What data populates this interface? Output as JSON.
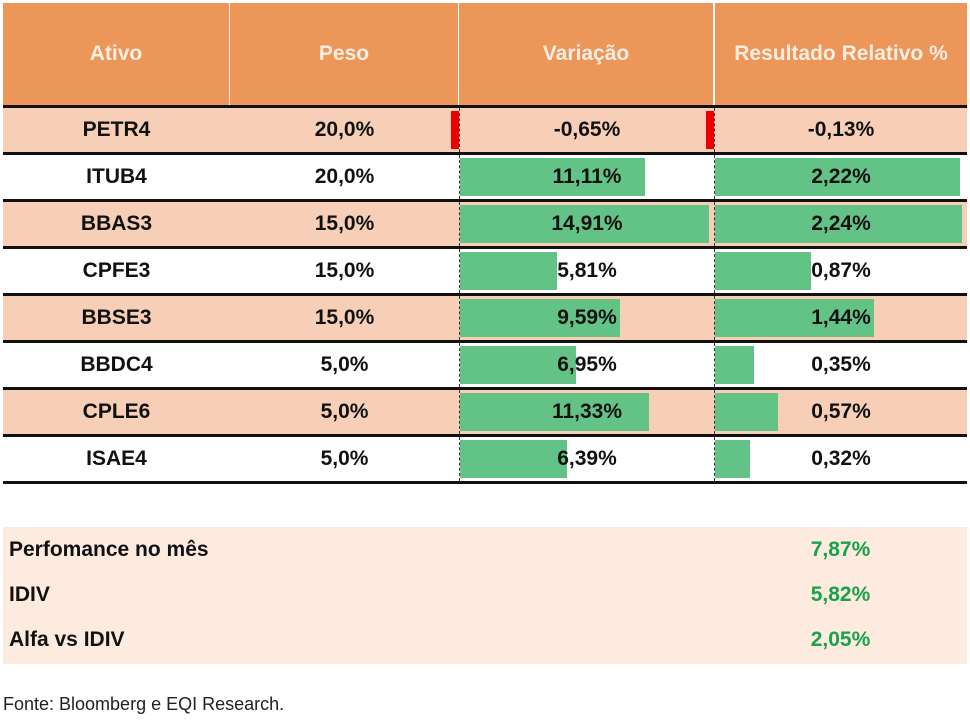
{
  "header": {
    "ativo": "Ativo",
    "peso": "Peso",
    "variacao": "Variação",
    "resultado": "Resultado Relativo %"
  },
  "max_variacao": 14.91,
  "max_resultado": 2.24,
  "rows": [
    {
      "ativo": "PETR4",
      "peso": "20,0%",
      "variacao": "-0,65%",
      "variacao_value": -0.65,
      "resultado": "-0,13%",
      "resultado_value": -0.13
    },
    {
      "ativo": "ITUB4",
      "peso": "20,0%",
      "variacao": "11,11%",
      "variacao_value": 11.11,
      "resultado": "2,22%",
      "resultado_value": 2.22
    },
    {
      "ativo": "BBAS3",
      "peso": "15,0%",
      "variacao": "14,91%",
      "variacao_value": 14.91,
      "resultado": "2,24%",
      "resultado_value": 2.24
    },
    {
      "ativo": "CPFE3",
      "peso": "15,0%",
      "variacao": "5,81%",
      "variacao_value": 5.81,
      "resultado": "0,87%",
      "resultado_value": 0.87
    },
    {
      "ativo": "BBSE3",
      "peso": "15,0%",
      "variacao": "9,59%",
      "variacao_value": 9.59,
      "resultado": "1,44%",
      "resultado_value": 1.44
    },
    {
      "ativo": "BBDC4",
      "peso": "5,0%",
      "variacao": "6,95%",
      "variacao_value": 6.95,
      "resultado": "0,35%",
      "resultado_value": 0.35
    },
    {
      "ativo": "CPLE6",
      "peso": "5,0%",
      "variacao": "11,33%",
      "variacao_value": 11.33,
      "resultado": "0,57%",
      "resultado_value": 0.57
    },
    {
      "ativo": "ISAE4",
      "peso": "5,0%",
      "variacao": "6,39%",
      "variacao_value": 6.39,
      "resultado": "0,32%",
      "resultado_value": 0.32
    }
  ],
  "summary": [
    {
      "label": "Perfomance no mês",
      "value": "7,87%"
    },
    {
      "label": "IDIV",
      "value": "5,82%"
    },
    {
      "label": "Alfa vs IDIV",
      "value": "2,05%"
    }
  ],
  "colors": {
    "header_bg": "#ec9659",
    "row_alt_bg": "#f6cfb6",
    "bar_positive": "#63c386",
    "bar_negative": "#ee0000",
    "summary_bg": "#fdebe0",
    "summary_value": "#16a34a"
  },
  "source": "Fonte: Bloomberg e EQI Research."
}
